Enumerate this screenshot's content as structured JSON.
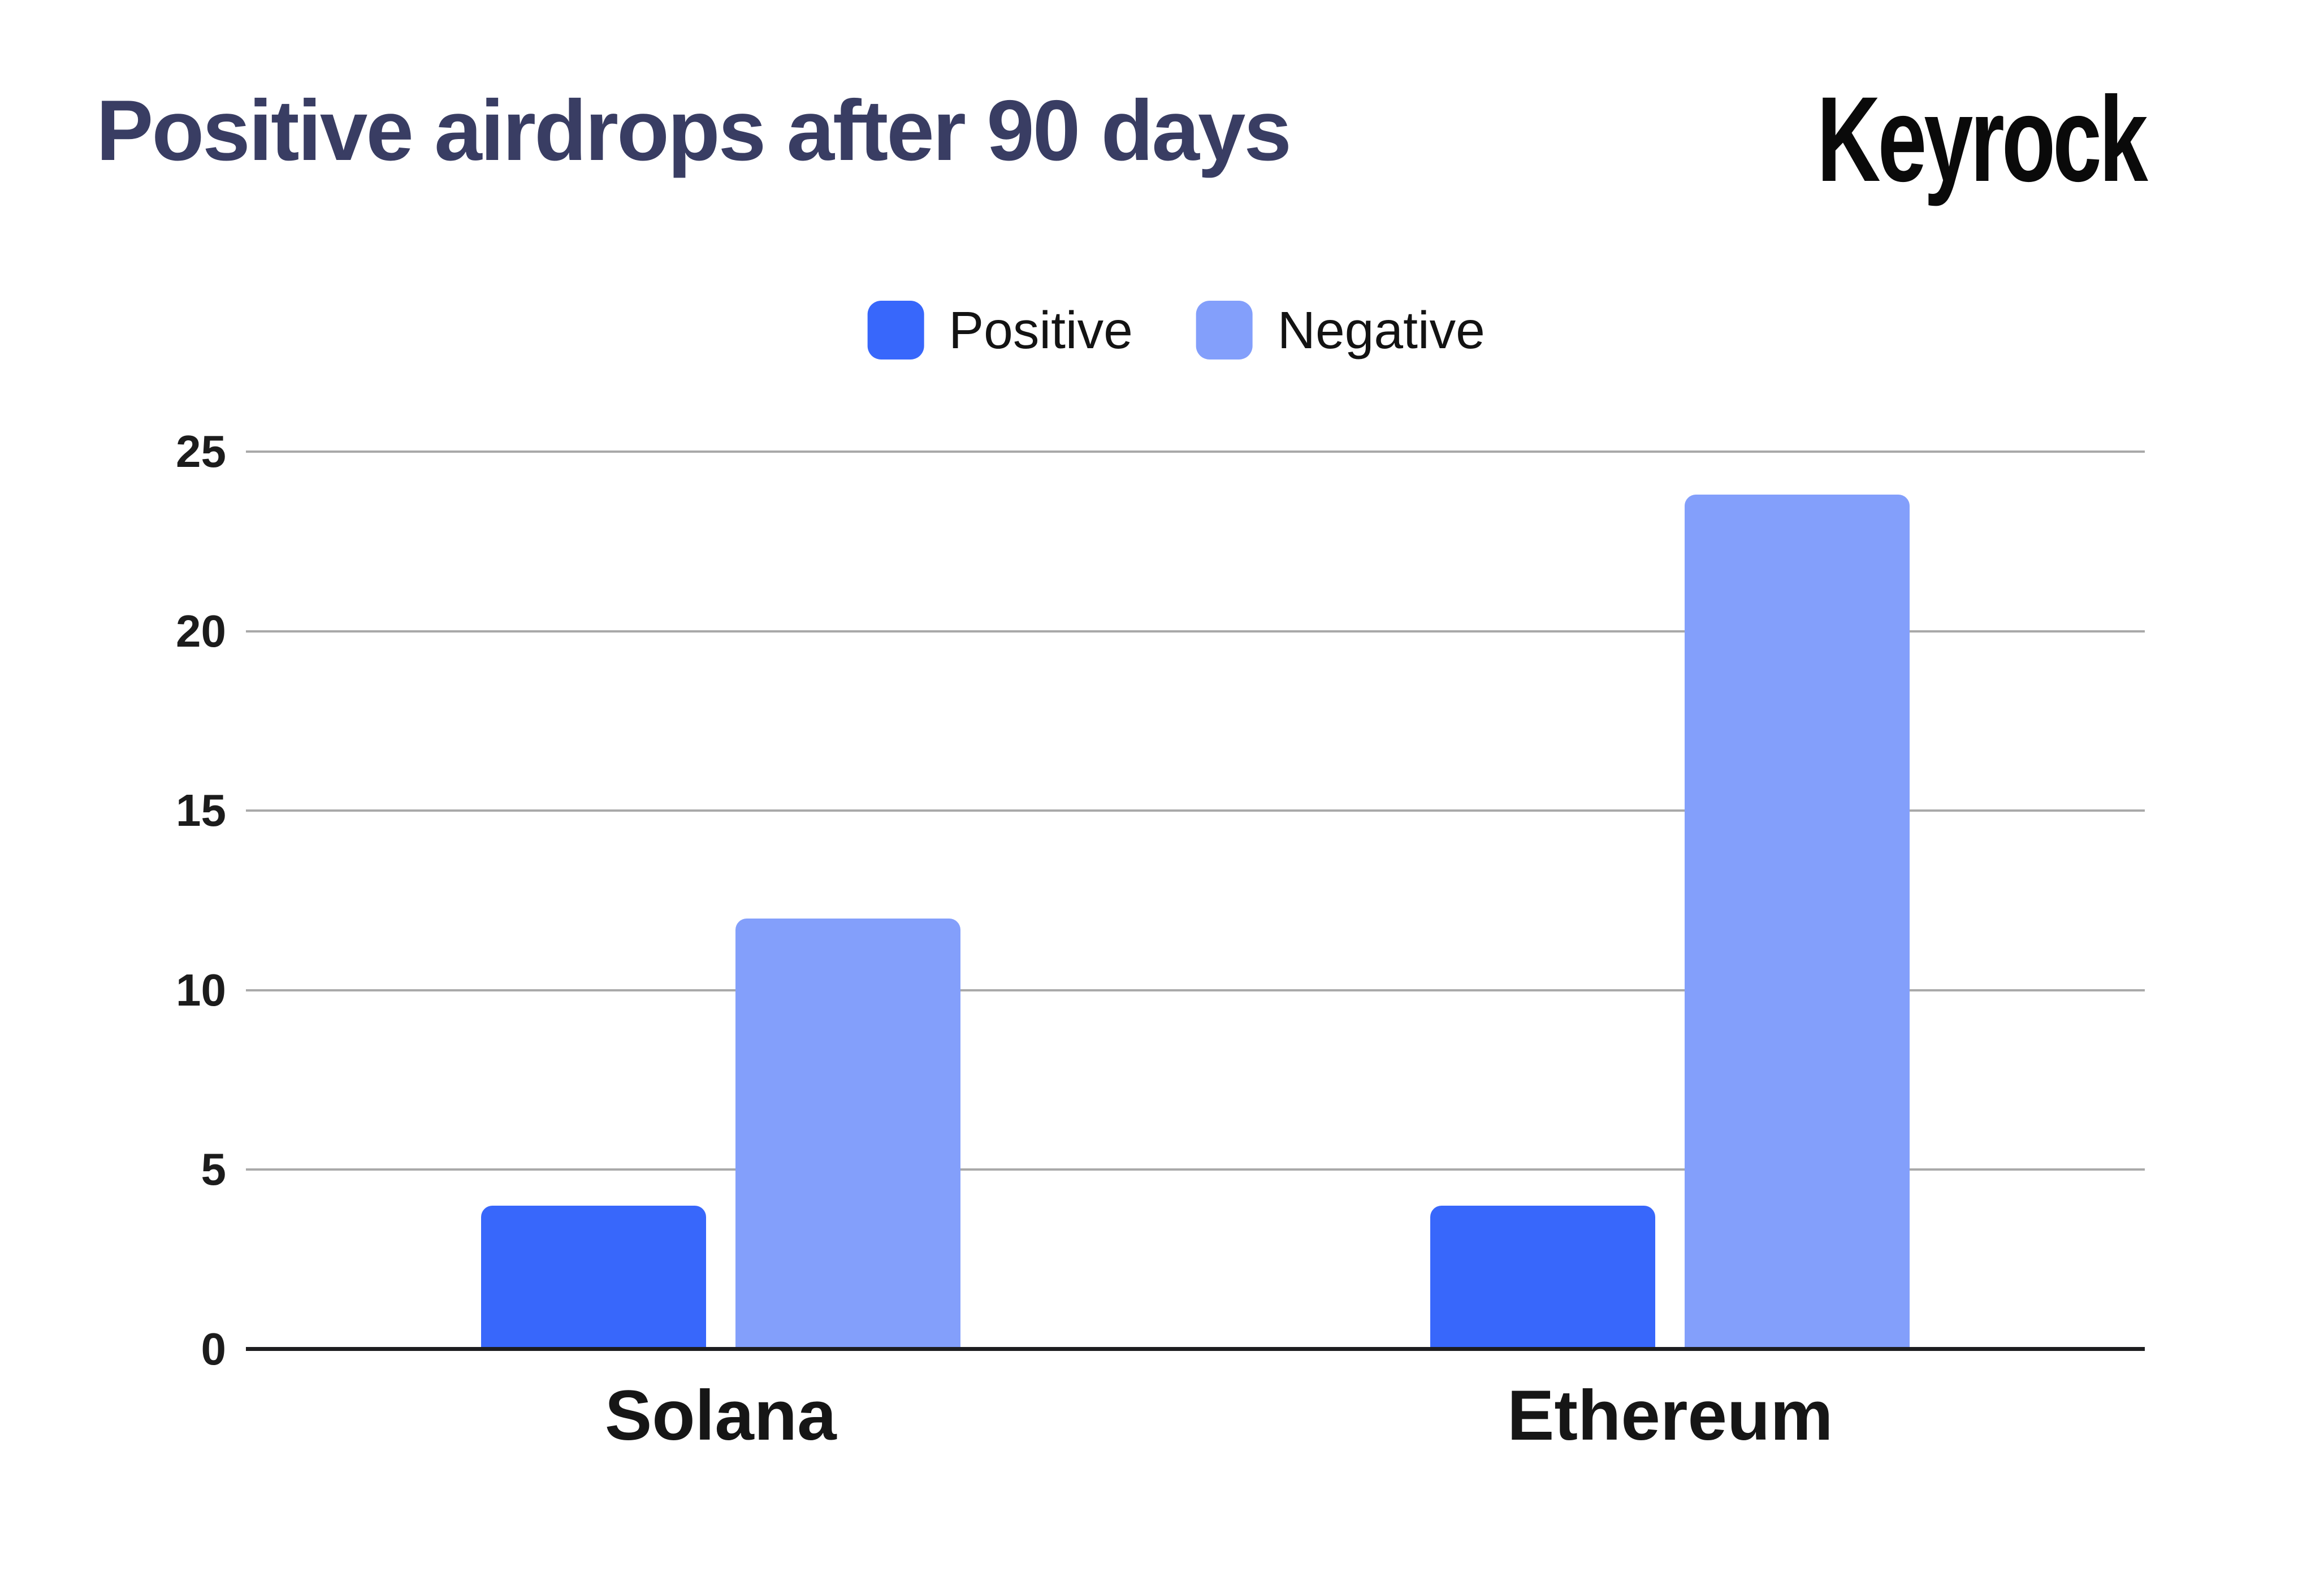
{
  "header": {
    "title": "Positive airdrops after 90 days",
    "logo_text": "Keyrock"
  },
  "colors": {
    "title": "#393d63",
    "logo": "#0a0a0a",
    "positive": "#3867fb",
    "negative": "#839ffb",
    "gridline": "#a9a9a9",
    "axis_line": "#1d1d1f",
    "tick_text": "#1c1c1c",
    "label_text": "#161616"
  },
  "chart_data": {
    "type": "bar",
    "title": "Positive airdrops after 90 days",
    "categories": [
      "Solana",
      "Ethereum"
    ],
    "series": [
      {
        "name": "Positive",
        "color": "#3867fb",
        "values": [
          4,
          4
        ]
      },
      {
        "name": "Negative",
        "color": "#839ffb",
        "values": [
          12,
          23.8
        ]
      }
    ],
    "xlabel": "",
    "ylabel": "",
    "ylim": [
      0,
      25
    ],
    "yticks": [
      0,
      5,
      10,
      15,
      20,
      25
    ],
    "grid": true,
    "legend_position": "top-center",
    "bar_corner_radius_px": 20
  }
}
